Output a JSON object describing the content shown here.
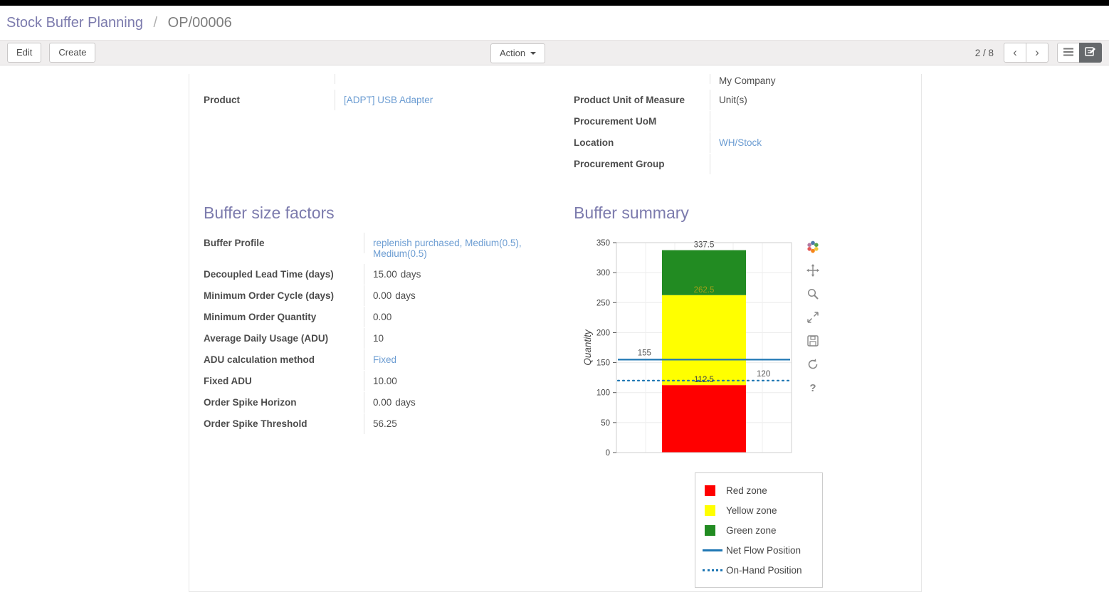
{
  "colors": {
    "link": "#6b9cd2",
    "heading": "#7c7bad",
    "topbar": "#000000",
    "toolbar_bg": "#f0eeee",
    "active_view_bg": "#66696c"
  },
  "breadcrumb": {
    "section": "Stock Buffer Planning",
    "separator": "/",
    "record": "OP/00006"
  },
  "toolbar": {
    "edit": "Edit",
    "create": "Create",
    "action": "Action",
    "pager": "2 / 8",
    "icons": {
      "prev": "‹",
      "next": "›"
    }
  },
  "form": {
    "company_partial": "My Company",
    "product": {
      "label": "Product",
      "value": "[ADPT] USB Adapter"
    },
    "right_fields": [
      {
        "label": "Product Unit of Measure",
        "value": "Unit(s)"
      },
      {
        "label": "Procurement UoM",
        "value": ""
      },
      {
        "label": "Location",
        "value": "WH/Stock"
      },
      {
        "label": "Procurement Group",
        "value": ""
      }
    ]
  },
  "factors": {
    "title": "Buffer size factors",
    "rows": [
      {
        "label": "Buffer Profile",
        "value": "replenish purchased, Medium(0.5), Medium(0.5)"
      },
      {
        "label": "Decoupled Lead Time (days)",
        "value": "15.00",
        "suffix": "days"
      },
      {
        "label": "Minimum Order Cycle (days)",
        "value": "0.00",
        "suffix": "days"
      },
      {
        "label": "Minimum Order Quantity",
        "value": "0.00"
      },
      {
        "label": "Average Daily Usage (ADU)",
        "value": "10"
      },
      {
        "label": "ADU calculation method",
        "value": "Fixed"
      },
      {
        "label": "Fixed ADU",
        "value": "10.00"
      },
      {
        "label": "Order Spike Horizon",
        "value": "0.00",
        "suffix": "days"
      },
      {
        "label": "Order Spike Threshold",
        "value": "56.25"
      }
    ]
  },
  "summary": {
    "title": "Buffer summary"
  },
  "chart_data": {
    "type": "bar",
    "title": "",
    "xlabel": "",
    "ylabel": "Quantity",
    "ylim": [
      0,
      350
    ],
    "yticks": [
      0,
      50,
      100,
      150,
      200,
      250,
      300,
      350
    ],
    "grid": true,
    "legend_position": "below-right",
    "zones": [
      {
        "name": "Red zone",
        "from": 0,
        "to": 112.5,
        "color": "#ff0000"
      },
      {
        "name": "Yellow zone",
        "from": 112.5,
        "to": 262.5,
        "color": "#ffff00"
      },
      {
        "name": "Green zone",
        "from": 262.5,
        "to": 337.5,
        "color": "#228b22"
      }
    ],
    "lines": [
      {
        "name": "Net Flow Position",
        "value": 155,
        "style": "solid",
        "color": "#1f77b4",
        "label": "155",
        "label_pos": 0.16
      },
      {
        "name": "On-Hand Position",
        "value": 120,
        "style": "dotted",
        "color": "#1f77b4",
        "label": "120",
        "label_pos": 0.84
      }
    ],
    "annotations": [
      {
        "text": "337.5",
        "value": 337.5,
        "color": "#444444"
      },
      {
        "text": "262.5",
        "value": 262.5,
        "color": "#a3a018"
      },
      {
        "text": "112.5",
        "value": 112.5,
        "color": "#444444"
      }
    ],
    "legend": [
      "Red zone",
      "Yellow zone",
      "Green zone",
      "Net Flow Position",
      "On-Hand Position"
    ]
  }
}
